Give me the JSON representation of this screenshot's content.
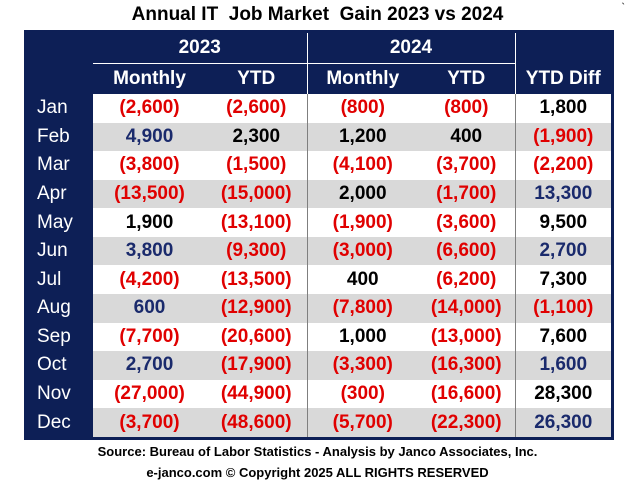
{
  "chart_data": {
    "type": "table",
    "title": "Annual IT  Job Market  Gain 2023 vs 2024",
    "column_groups": [
      {
        "label": "2023",
        "columns": [
          "Monthly",
          "YTD"
        ]
      },
      {
        "label": "2024",
        "columns": [
          "Monthly",
          "YTD"
        ]
      },
      {
        "label": "",
        "columns": [
          "YTD Diff"
        ]
      }
    ],
    "columns": [
      "Monthly",
      "YTD",
      "Monthly",
      "YTD",
      "YTD Diff"
    ],
    "rows": [
      {
        "month": "Jan",
        "cells": [
          "(2,600)",
          "(2,600)",
          "(800)",
          "(800)",
          "1,800"
        ],
        "values": [
          -2600,
          -2600,
          -800,
          -800,
          1800
        ]
      },
      {
        "month": "Feb",
        "cells": [
          "4,900",
          "2,300",
          "1,200",
          "400",
          "(1,900)"
        ],
        "values": [
          4900,
          2300,
          1200,
          400,
          -1900
        ]
      },
      {
        "month": "Mar",
        "cells": [
          "(3,800)",
          "(1,500)",
          "(4,100)",
          "(3,700)",
          "(2,200)"
        ],
        "values": [
          -3800,
          -1500,
          -4100,
          -3700,
          -2200
        ]
      },
      {
        "month": "Apr",
        "cells": [
          "(13,500)",
          "(15,000)",
          "2,000",
          "(1,700)",
          "13,300"
        ],
        "values": [
          -13500,
          -15000,
          2000,
          -1700,
          13300
        ]
      },
      {
        "month": "May",
        "cells": [
          "1,900",
          "(13,100)",
          "(1,900)",
          "(3,600)",
          "9,500"
        ],
        "values": [
          1900,
          -13100,
          -1900,
          -3600,
          9500
        ]
      },
      {
        "month": "Jun",
        "cells": [
          "3,800",
          "(9,300)",
          "(3,000)",
          "(6,600)",
          "2,700"
        ],
        "values": [
          3800,
          -9300,
          -3000,
          -6600,
          2700
        ]
      },
      {
        "month": "Jul",
        "cells": [
          "(4,200)",
          "(13,500)",
          "400",
          "(6,200)",
          "7,300"
        ],
        "values": [
          -4200,
          -13500,
          400,
          -6200,
          7300
        ]
      },
      {
        "month": "Aug",
        "cells": [
          "600",
          "(12,900)",
          "(7,800)",
          "(14,000)",
          "(1,100)"
        ],
        "values": [
          600,
          -12900,
          -7800,
          -14000,
          -1100
        ]
      },
      {
        "month": "Sep",
        "cells": [
          "(7,700)",
          "(20,600)",
          "1,000",
          "(13,000)",
          "7,600"
        ],
        "values": [
          -7700,
          -20600,
          1000,
          -13000,
          7600
        ]
      },
      {
        "month": "Oct",
        "cells": [
          "2,700",
          "(17,900)",
          "(3,300)",
          "(16,300)",
          "1,600"
        ],
        "values": [
          2700,
          -17900,
          -3300,
          -16300,
          1600
        ]
      },
      {
        "month": "Nov",
        "cells": [
          "(27,000)",
          "(44,900)",
          "(300)",
          "(16,600)",
          "28,300"
        ],
        "values": [
          -27000,
          -44900,
          -300,
          -16600,
          28300
        ]
      },
      {
        "month": "Dec",
        "cells": [
          "(3,700)",
          "(48,600)",
          "(5,700)",
          "(22,300)",
          "26,300"
        ],
        "values": [
          -3700,
          -48600,
          -5700,
          -22300,
          26300
        ]
      }
    ],
    "source": "Source: Bureau of Labor Statistics - Analysis by Janco Associates, Inc.",
    "copyright": "e-janco.com © Copyright 2025 ALL RIGHTS RESERVED",
    "colors": {
      "header_bg": "#0d1f56",
      "header_text": "#ffffff",
      "negative": "#e00000",
      "positive": "#000000",
      "stripe": "#d9d9d9"
    }
  },
  "corner_mark": "`"
}
